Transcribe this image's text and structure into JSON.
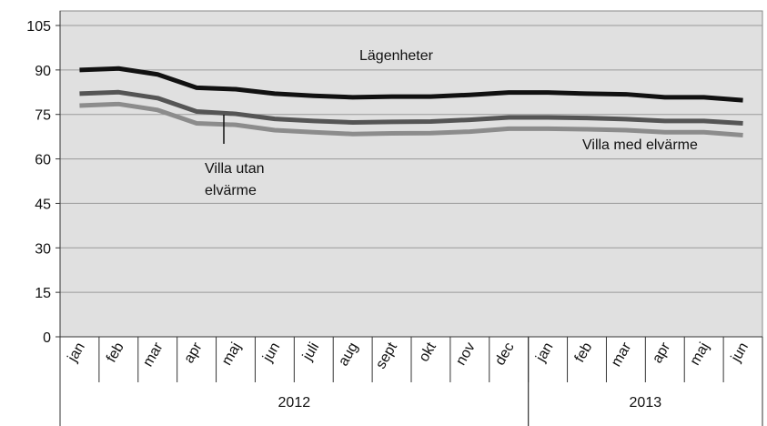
{
  "chart_data": {
    "type": "line",
    "categories": [
      "jan",
      "feb",
      "mar",
      "apr",
      "maj",
      "jun",
      "juli",
      "aug",
      "sept",
      "okt",
      "nov",
      "dec",
      "jan",
      "feb",
      "mar",
      "apr",
      "maj",
      "jun"
    ],
    "groups": [
      {
        "name": "2012",
        "count": 12
      },
      {
        "name": "2013",
        "count": 6
      }
    ],
    "series": [
      {
        "name": "Lägenheter",
        "color": "#111111",
        "values": [
          90,
          90.5,
          88.5,
          84,
          83.5,
          82,
          81.3,
          80.8,
          81,
          81,
          81.6,
          82.4,
          82.4,
          82,
          81.8,
          80.8,
          80.8,
          79.8
        ]
      },
      {
        "name": "Villa med elvärme",
        "color": "#555555",
        "values": [
          82,
          82.5,
          80.5,
          76,
          75.2,
          73.5,
          72.8,
          72.3,
          72.5,
          72.6,
          73.2,
          74,
          74,
          73.8,
          73.4,
          72.8,
          72.8,
          72
        ]
      },
      {
        "name": "Villa utan elvärme",
        "color": "#8c8c8c",
        "values": [
          78,
          78.5,
          76.5,
          72,
          71.5,
          69.7,
          69,
          68.4,
          68.6,
          68.7,
          69.2,
          70.2,
          70.2,
          70,
          69.7,
          69,
          69,
          68
        ]
      }
    ],
    "ylim": [
      0,
      105
    ],
    "yticks": [
      0,
      15,
      30,
      45,
      60,
      75,
      90,
      105
    ],
    "grid": true
  }
}
